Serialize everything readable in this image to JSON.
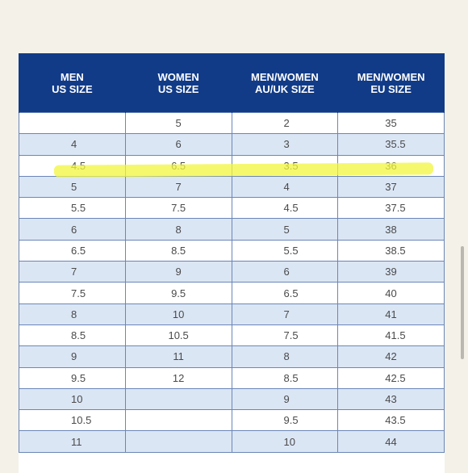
{
  "table": {
    "headers": [
      [
        "MEN",
        "US SIZE"
      ],
      [
        "WOMEN",
        "US SIZE"
      ],
      [
        "MEN/WOMEN",
        "AU/UK SIZE"
      ],
      [
        "MEN/WOMEN",
        "EU SIZE"
      ]
    ],
    "rows": [
      [
        "",
        "5",
        "2",
        "35"
      ],
      [
        "4",
        "6",
        "3",
        "35.5"
      ],
      [
        "4.5",
        "6.5",
        "3.5",
        "36"
      ],
      [
        "5",
        "7",
        "4",
        "37"
      ],
      [
        "5.5",
        "7.5",
        "4.5",
        "37.5"
      ],
      [
        "6",
        "8",
        "5",
        "38"
      ],
      [
        "6.5",
        "8.5",
        "5.5",
        "38.5"
      ],
      [
        "7",
        "9",
        "6",
        "39"
      ],
      [
        "7.5",
        "9.5",
        "6.5",
        "40"
      ],
      [
        "8",
        "10",
        "7",
        "41"
      ],
      [
        "8.5",
        "10.5",
        "7.5",
        "41.5"
      ],
      [
        "9",
        "11",
        "8",
        "42"
      ],
      [
        "9.5",
        "12",
        "8.5",
        "42.5"
      ],
      [
        "10",
        "",
        "9",
        "43"
      ],
      [
        "10.5",
        "",
        "9.5",
        "43.5"
      ],
      [
        "11",
        "",
        "10",
        "44"
      ]
    ],
    "highlighted_row": 2
  },
  "colors": {
    "header_bg": "#113b87",
    "stripe": "#dbe6f5",
    "highlight": "#f2f53c"
  }
}
